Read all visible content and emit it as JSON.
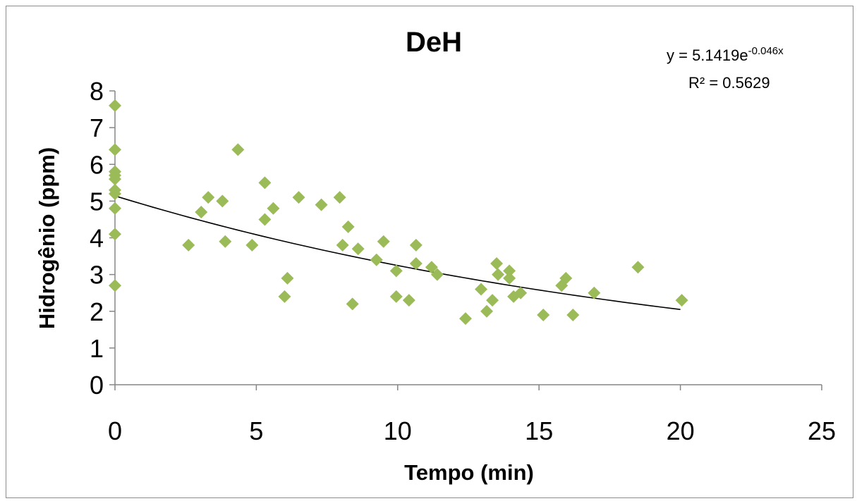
{
  "chart_data": {
    "type": "scatter",
    "title": "DeH",
    "xlabel": "Tempo (min)",
    "ylabel": "Hidrogênio (ppm)",
    "xlim": [
      0,
      25
    ],
    "ylim": [
      0,
      8
    ],
    "xticks": [
      0,
      5,
      10,
      15,
      20,
      25
    ],
    "yticks": [
      0,
      1,
      2,
      3,
      4,
      5,
      6,
      7,
      8
    ],
    "grid": false,
    "marker_color": "#9bbb59",
    "trendline": {
      "type": "exponential",
      "a": 5.1419,
      "b": -0.046,
      "x_range": [
        0,
        20
      ],
      "equation_prefix": "y = 5.1419e",
      "equation_exponent": "-0.046x",
      "r_squared_label": "R² = 0.5629",
      "color": "#000000"
    },
    "series": [
      {
        "points": [
          [
            0,
            7.6
          ],
          [
            0,
            6.4
          ],
          [
            0,
            5.8
          ],
          [
            0,
            5.7
          ],
          [
            0,
            5.6
          ],
          [
            0,
            5.3
          ],
          [
            0,
            5.2
          ],
          [
            0,
            4.8
          ],
          [
            0,
            4.1
          ],
          [
            0,
            2.7
          ],
          [
            2.6,
            3.8
          ],
          [
            3.05,
            4.7
          ],
          [
            3.3,
            5.1
          ],
          [
            3.8,
            5.0
          ],
          [
            3.9,
            3.9
          ],
          [
            4.35,
            6.4
          ],
          [
            4.85,
            3.8
          ],
          [
            5.3,
            5.5
          ],
          [
            5.3,
            4.5
          ],
          [
            5.6,
            4.8
          ],
          [
            6.0,
            2.4
          ],
          [
            6.1,
            2.9
          ],
          [
            6.5,
            5.1
          ],
          [
            7.3,
            4.9
          ],
          [
            7.95,
            5.1
          ],
          [
            8.05,
            3.8
          ],
          [
            8.25,
            4.3
          ],
          [
            8.4,
            2.2
          ],
          [
            8.6,
            3.7
          ],
          [
            9.25,
            3.4
          ],
          [
            9.5,
            3.9
          ],
          [
            9.95,
            3.1
          ],
          [
            9.95,
            2.4
          ],
          [
            10.4,
            2.3
          ],
          [
            10.65,
            3.8
          ],
          [
            10.65,
            3.3
          ],
          [
            11.2,
            3.2
          ],
          [
            11.4,
            3.0
          ],
          [
            12.4,
            1.8
          ],
          [
            12.95,
            2.6
          ],
          [
            13.15,
            2.0
          ],
          [
            13.35,
            2.3
          ],
          [
            13.5,
            3.3
          ],
          [
            13.55,
            3.0
          ],
          [
            13.95,
            3.1
          ],
          [
            13.95,
            2.9
          ],
          [
            14.1,
            2.4
          ],
          [
            14.35,
            2.5
          ],
          [
            15.15,
            1.9
          ],
          [
            15.8,
            2.7
          ],
          [
            15.95,
            2.9
          ],
          [
            16.2,
            1.9
          ],
          [
            16.95,
            2.5
          ],
          [
            18.5,
            3.2
          ],
          [
            20.05,
            2.3
          ]
        ]
      }
    ]
  }
}
